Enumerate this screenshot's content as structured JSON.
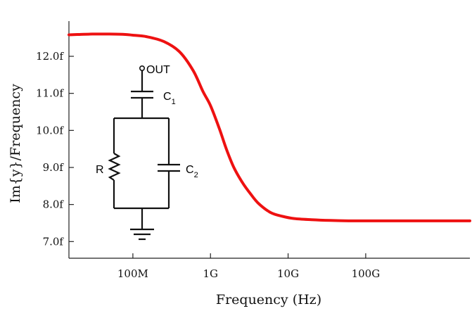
{
  "chart_data": {
    "type": "line",
    "title": "",
    "xlabel": "Frequency (Hz)",
    "ylabel": "Im{y}/Frequency",
    "xscale": "log",
    "xlim": [
      15000000,
      2200000000000
    ],
    "ylim": [
      6.55,
      12.95
    ],
    "x_ticks": [
      {
        "value": 100000000,
        "label": "100M"
      },
      {
        "value": 1000000000,
        "label": "1G"
      },
      {
        "value": 10000000000,
        "label": "10G"
      },
      {
        "value": 100000000000,
        "label": "100G"
      }
    ],
    "y_ticks": [
      {
        "value": 7.0,
        "label": "7.0f"
      },
      {
        "value": 8.0,
        "label": "8.0f"
      },
      {
        "value": 9.0,
        "label": "9.0f"
      },
      {
        "value": 10.0,
        "label": "10.0f"
      },
      {
        "value": 11.0,
        "label": "11.0f"
      },
      {
        "value": 12.0,
        "label": "12.0f"
      }
    ],
    "grid": false,
    "series": [
      {
        "color": "#ee1111",
        "x": [
          15000000,
          20000000,
          30000000,
          50000000,
          80000000,
          100000000,
          150000000,
          250000000,
          400000000,
          600000000,
          800000000,
          1000000000,
          1300000000,
          1600000000,
          2000000000,
          2600000000,
          3300000000,
          4200000000,
          6000000000,
          8500000000,
          12000000000,
          20000000000,
          35000000000,
          60000000000,
          100000000000,
          200000000000,
          400000000000,
          1000000000000,
          2200000000000
        ],
        "y": [
          12.58,
          12.59,
          12.6,
          12.6,
          12.59,
          12.57,
          12.53,
          12.4,
          12.12,
          11.61,
          11.05,
          10.67,
          10.05,
          9.5,
          9.0,
          8.58,
          8.28,
          8.02,
          7.78,
          7.68,
          7.62,
          7.59,
          7.57,
          7.56,
          7.56,
          7.56,
          7.56,
          7.56,
          7.56
        ]
      }
    ]
  },
  "circuit": {
    "output_label": "OUT",
    "c1_label": "C",
    "c1_sub": "1",
    "c2_label": "C",
    "c2_sub": "2",
    "r_label": "R"
  }
}
